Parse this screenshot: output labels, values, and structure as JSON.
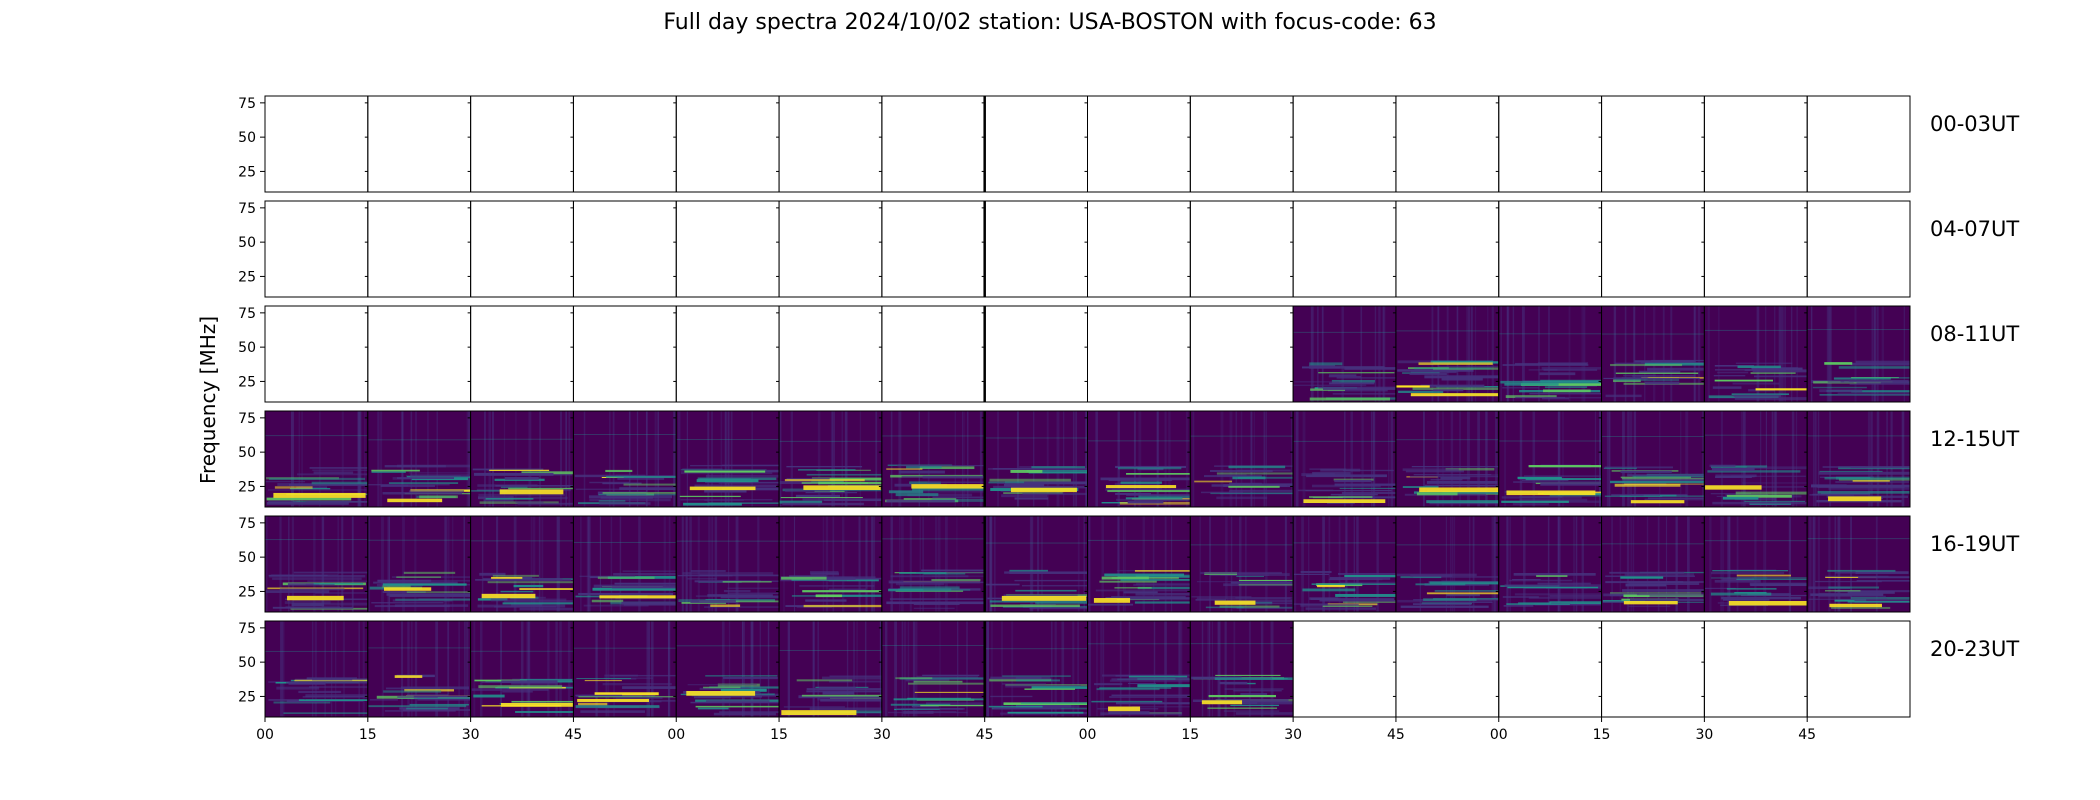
{
  "title": "Full day spectra 2024/10/02 station: USA-BOSTON with focus-code: 63",
  "chart_data": {
    "type": "heatmap",
    "title": "Full day spectra 2024/10/02 station: USA-BOSTON with focus-code: 63",
    "ylabel": "Frequency [MHz]",
    "xlabel": "",
    "colormap": "viridis",
    "y_ticks": [
      "75",
      "50",
      "25"
    ],
    "x_ticks": [
      "00",
      "15",
      "30",
      "45",
      "00",
      "15",
      "30",
      "45",
      "00",
      "15",
      "30",
      "45",
      "00",
      "15",
      "30",
      "45"
    ],
    "panels_per_row": 16,
    "panel_minutes": 15,
    "rows": [
      {
        "label": "00-03UT",
        "data_panels": []
      },
      {
        "label": "04-07UT",
        "data_panels": []
      },
      {
        "label": "08-11UT",
        "data_panels": [
          10,
          11,
          12,
          13,
          14,
          15
        ]
      },
      {
        "label": "12-15UT",
        "data_panels": [
          0,
          1,
          2,
          3,
          4,
          5,
          6,
          7,
          8,
          9,
          10,
          11,
          12,
          13,
          14,
          15
        ]
      },
      {
        "label": "16-19UT",
        "data_panels": [
          0,
          1,
          2,
          3,
          4,
          5,
          6,
          7,
          8,
          9,
          10,
          11,
          12,
          13,
          14,
          15
        ]
      },
      {
        "label": "20-23UT",
        "data_panels": [
          0,
          1,
          2,
          3,
          4,
          5,
          6,
          7,
          8,
          9
        ]
      }
    ],
    "colors": {
      "background": "#440154",
      "low": "#46327e",
      "mid": "#21918c",
      "high": "#5ec962",
      "peak": "#fde725"
    }
  }
}
